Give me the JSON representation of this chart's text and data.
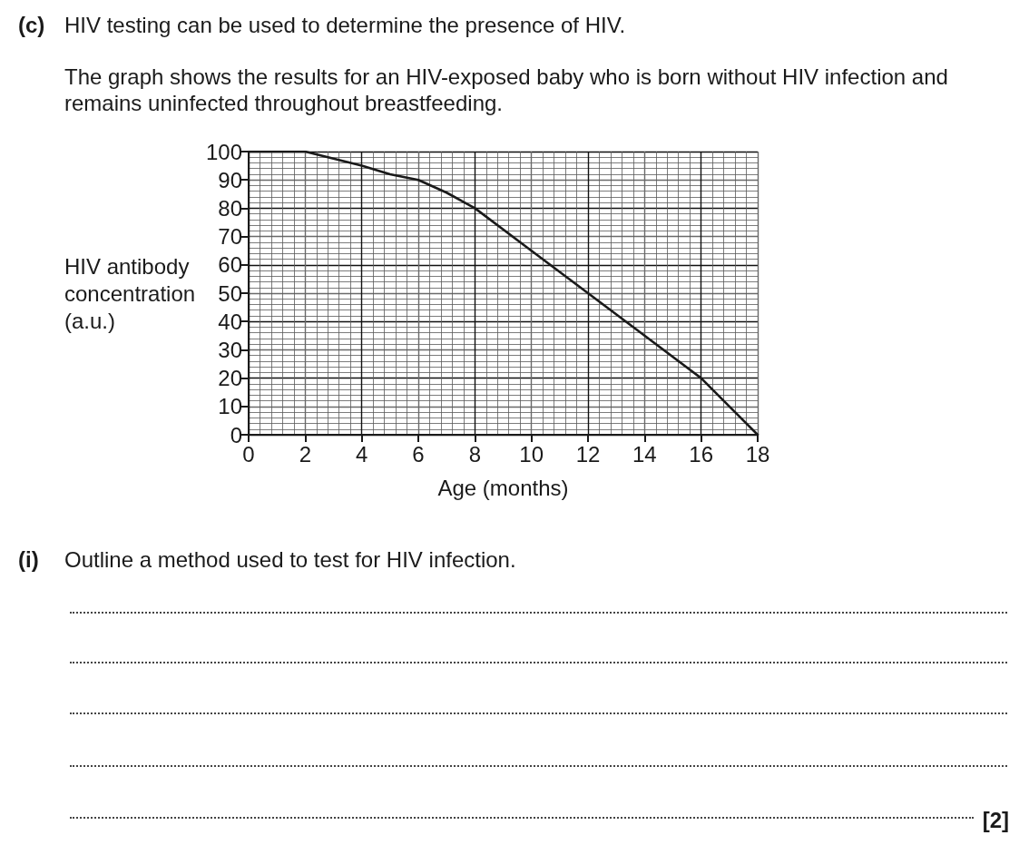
{
  "chart_data": {
    "type": "line",
    "title": "HIV testing can be used to determine the presence of HIV.",
    "subtitle": "The graph shows the results for an HIV-exposed baby who is born without HIV infection and remains uninfected throughout breastfeeding.",
    "xlabel": "Age (months)",
    "ylabel": "HIV antibody concentration (a.u.)",
    "annotations": [
      "(c)",
      "(i)",
      "Outline a method used to test for HIV infection.",
      "[2]"
    ],
    "x": [
      0,
      2,
      3,
      4,
      5,
      6,
      7,
      8,
      10,
      12,
      14,
      16,
      17,
      18
    ],
    "values": [
      100,
      100,
      97.5,
      95,
      92,
      90,
      85.5,
      80,
      65,
      50,
      35,
      20,
      10,
      0
    ],
    "color": "#1a1a1a",
    "xlim": [
      0,
      18
    ],
    "xticks": [
      0,
      2,
      4,
      6,
      8,
      10,
      12,
      14,
      16,
      18
    ],
    "ylim": [
      0,
      100
    ],
    "yticks": [
      0,
      10,
      20,
      30,
      40,
      50,
      60,
      70,
      80,
      90,
      100
    ],
    "grid": true
  }
}
